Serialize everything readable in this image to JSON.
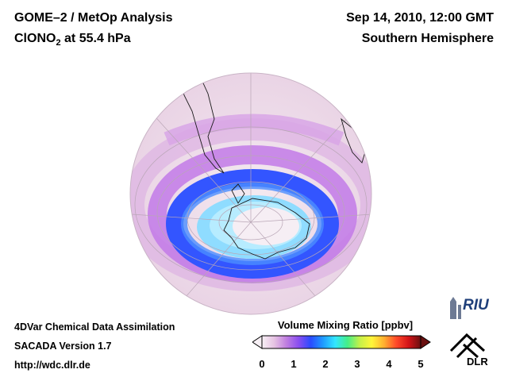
{
  "header": {
    "instrument_title": "GOME–2 / MetOp Analysis",
    "species_main": "ClONO",
    "species_sub": "2",
    "species_suffix": " at 55.4 hPa",
    "datetime": "Sep 14, 2010, 12:00 GMT",
    "region": "Southern Hemisphere"
  },
  "footer": {
    "line1": "4DVar Chemical Data Assimilation",
    "line2": "SACADA Version 1.7",
    "line3": "http://wdc.dlr.de"
  },
  "colorbar": {
    "title": "Volume Mixing Ratio [ppbv]",
    "ticks": [
      "0",
      "1",
      "2",
      "3",
      "4",
      "5"
    ],
    "min": 0,
    "max": 5,
    "stops": [
      "#f7f0f5",
      "#e6c3e3",
      "#c07ee0",
      "#8a4ef0",
      "#2a4bff",
      "#1f9bff",
      "#33e6ff",
      "#44ee88",
      "#c4f04a",
      "#fff53a",
      "#ffb030",
      "#ff4a2a",
      "#d41418",
      "#6a1010"
    ]
  },
  "map": {
    "projection": "orthographic",
    "hemisphere": "south",
    "field_colors": {
      "background": "#f3e6ef",
      "low_ring": "#3a55ff",
      "mid_ring": "#c37be6",
      "core": "#9de6ff",
      "vortex_center": "#f6eef4"
    }
  },
  "logos": {
    "riu": "RIU",
    "dlr": "DLR"
  }
}
